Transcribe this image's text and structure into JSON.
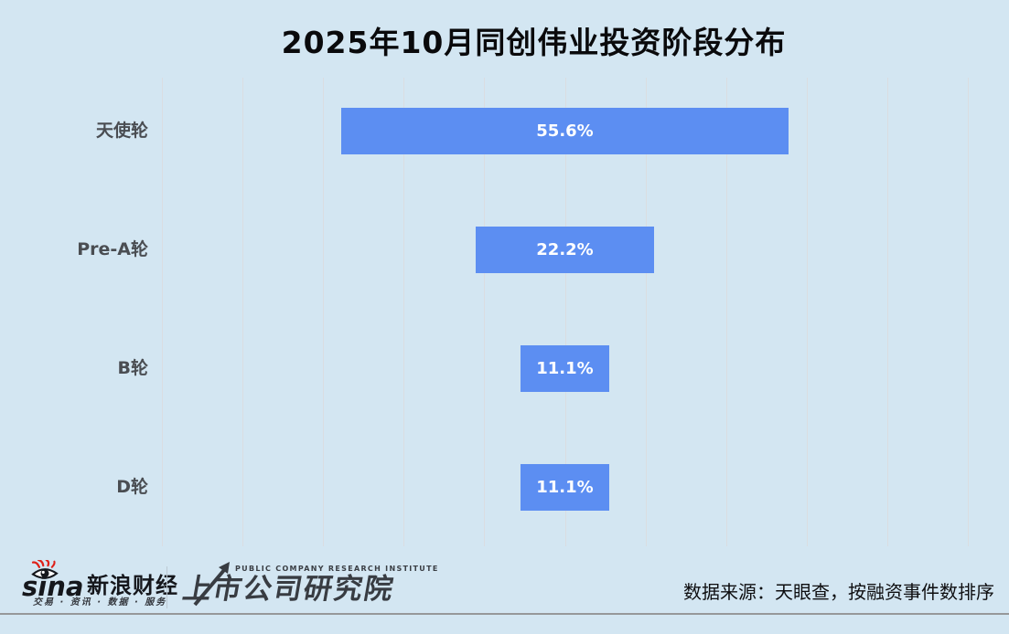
{
  "header": {
    "title": "2025年10月同创伟业投资阶段分布"
  },
  "chart_data": {
    "type": "bar",
    "orientation": "horizontal",
    "style": "centered-funnel",
    "title": "2025年10月同创伟业投资阶段分布",
    "categories": [
      "天使轮",
      "Pre-A轮",
      "B轮",
      "D轮"
    ],
    "values": [
      55.6,
      22.2,
      11.1,
      11.1
    ],
    "value_labels": [
      "55.6%",
      "22.2%",
      "11.1%",
      "11.1%"
    ],
    "unit": "%",
    "xlim": [
      0,
      100
    ],
    "grid": "vertical",
    "gridline_count": 11,
    "legend": "none",
    "bar_color": "#5c8ef2",
    "value_label_color": "#ffffff",
    "category_label_color": "#4a4d52"
  },
  "footer": {
    "sina_wordmark": "sina",
    "sina_brand": "新浪财经",
    "sina_tagline": "交易 · 资讯 · 数据 · 服务",
    "institute_en": "PUBLIC COMPANY RESEARCH INSTITUTE",
    "institute_cn": "上市公司研究院",
    "source_note": "数据来源：天眼查，按融资事件数排序"
  },
  "colors": {
    "background": "#d3e6f2",
    "bar": "#5c8ef2",
    "gridline": "#dadde1",
    "title_text": "#0a0a0c",
    "category_label": "#4a4d52",
    "value_label": "#ffffff",
    "bottom_rule": "#96989a",
    "sina_red": "#df2119",
    "logo_dark": "#383c42"
  }
}
